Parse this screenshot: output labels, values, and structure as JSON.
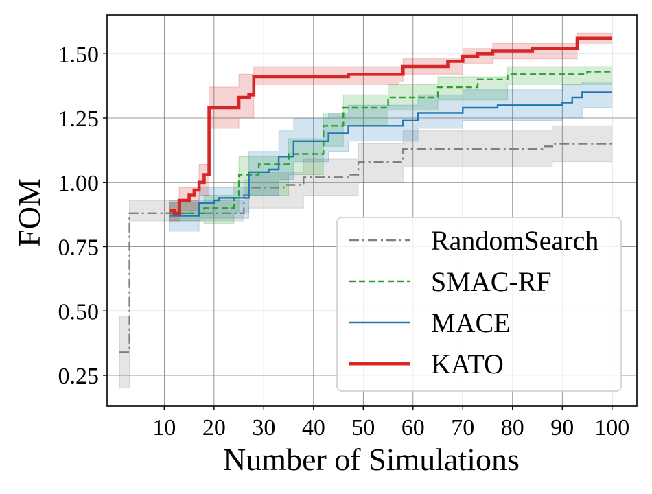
{
  "chart_data": {
    "type": "line",
    "title": "",
    "xlabel": "Number of Simulations",
    "ylabel": "FOM",
    "xlim": [
      -1.5,
      105
    ],
    "ylim": [
      0.13,
      1.65
    ],
    "xticks": [
      10,
      20,
      30,
      40,
      50,
      60,
      70,
      80,
      90,
      100
    ],
    "xtick_labels": [
      "10",
      "20",
      "30",
      "40",
      "50",
      "60",
      "70",
      "80",
      "90",
      "100"
    ],
    "yticks": [
      0.25,
      0.5,
      0.75,
      1.0,
      1.25,
      1.5
    ],
    "ytick_labels": [
      "0.25",
      "0.50",
      "0.75",
      "1.00",
      "1.25",
      "1.50"
    ],
    "grid": true,
    "legend_position": "lower-right",
    "series": [
      {
        "name": "RandomSearch",
        "color": "#7f7f7f",
        "style": "dashdot",
        "points": [
          [
            1,
            0.34
          ],
          [
            3,
            0.88
          ],
          [
            26,
            0.95
          ],
          [
            27,
            0.98
          ],
          [
            34,
            0.99
          ],
          [
            38,
            1.02
          ],
          [
            47,
            1.03
          ],
          [
            49,
            1.08
          ],
          [
            58,
            1.13
          ],
          [
            86,
            1.14
          ],
          [
            88,
            1.15
          ],
          [
            100,
            1.15
          ]
        ],
        "band": [
          [
            1,
            0.2,
            0.48
          ],
          [
            3,
            0.85,
            0.93
          ],
          [
            26,
            0.88,
            1.01
          ],
          [
            27,
            0.9,
            1.04
          ],
          [
            38,
            0.95,
            1.09
          ],
          [
            49,
            1.0,
            1.15
          ],
          [
            58,
            1.06,
            1.2
          ],
          [
            88,
            1.08,
            1.22
          ],
          [
            100,
            1.08,
            1.22
          ]
        ]
      },
      {
        "name": "SMAC-RF",
        "color": "#2ca02c",
        "style": "dashed",
        "points": [
          [
            11,
            0.88
          ],
          [
            14,
            0.88
          ],
          [
            18,
            0.9
          ],
          [
            22,
            0.9
          ],
          [
            24,
            0.94
          ],
          [
            25,
            1.03
          ],
          [
            29,
            1.07
          ],
          [
            35,
            1.11
          ],
          [
            40,
            1.11
          ],
          [
            42,
            1.22
          ],
          [
            46,
            1.29
          ],
          [
            54,
            1.29
          ],
          [
            55,
            1.33
          ],
          [
            62,
            1.33
          ],
          [
            65,
            1.37
          ],
          [
            71,
            1.37
          ],
          [
            73,
            1.4
          ],
          [
            79,
            1.42
          ],
          [
            90,
            1.42
          ],
          [
            95,
            1.43
          ],
          [
            100,
            1.43
          ]
        ],
        "band": [
          [
            11,
            0.85,
            0.92
          ],
          [
            18,
            0.84,
            0.95
          ],
          [
            24,
            0.88,
            1.0
          ],
          [
            25,
            0.95,
            1.1
          ],
          [
            35,
            1.03,
            1.17
          ],
          [
            42,
            1.14,
            1.27
          ],
          [
            46,
            1.22,
            1.34
          ],
          [
            55,
            1.28,
            1.38
          ],
          [
            65,
            1.32,
            1.41
          ],
          [
            79,
            1.38,
            1.45
          ],
          [
            100,
            1.39,
            1.46
          ]
        ]
      },
      {
        "name": "MACE",
        "color": "#1f77b4",
        "style": "solid",
        "points": [
          [
            11,
            0.87
          ],
          [
            16,
            0.87
          ],
          [
            17,
            0.92
          ],
          [
            20,
            0.93
          ],
          [
            21,
            0.94
          ],
          [
            26,
            0.94
          ],
          [
            27,
            1.04
          ],
          [
            31,
            1.05
          ],
          [
            33,
            1.1
          ],
          [
            36,
            1.16
          ],
          [
            42,
            1.16
          ],
          [
            43,
            1.19
          ],
          [
            47,
            1.22
          ],
          [
            57,
            1.22
          ],
          [
            58,
            1.24
          ],
          [
            61,
            1.27
          ],
          [
            70,
            1.29
          ],
          [
            77,
            1.3
          ],
          [
            88,
            1.3
          ],
          [
            90,
            1.31
          ],
          [
            92,
            1.33
          ],
          [
            94,
            1.35
          ],
          [
            100,
            1.35
          ]
        ],
        "band": [
          [
            11,
            0.81,
            0.93
          ],
          [
            17,
            0.86,
            0.98
          ],
          [
            27,
            0.95,
            1.12
          ],
          [
            33,
            1.01,
            1.2
          ],
          [
            36,
            1.08,
            1.25
          ],
          [
            43,
            1.12,
            1.27
          ],
          [
            47,
            1.16,
            1.3
          ],
          [
            61,
            1.21,
            1.34
          ],
          [
            70,
            1.24,
            1.36
          ],
          [
            90,
            1.25,
            1.38
          ],
          [
            94,
            1.29,
            1.39
          ],
          [
            100,
            1.3,
            1.4
          ]
        ]
      },
      {
        "name": "KATO",
        "color": "#d62728",
        "style": "solid",
        "points": [
          [
            11,
            0.89
          ],
          [
            12,
            0.88
          ],
          [
            13,
            0.93
          ],
          [
            15,
            0.95
          ],
          [
            16,
            0.97
          ],
          [
            17,
            1.0
          ],
          [
            18,
            1.03
          ],
          [
            19,
            1.29
          ],
          [
            24,
            1.29
          ],
          [
            25,
            1.33
          ],
          [
            27,
            1.34
          ],
          [
            28,
            1.41
          ],
          [
            45,
            1.41
          ],
          [
            47,
            1.42
          ],
          [
            57,
            1.42
          ],
          [
            58,
            1.45
          ],
          [
            65,
            1.45
          ],
          [
            67,
            1.47
          ],
          [
            70,
            1.49
          ],
          [
            73,
            1.5
          ],
          [
            76,
            1.51
          ],
          [
            82,
            1.51
          ],
          [
            84,
            1.52
          ],
          [
            86,
            1.52
          ],
          [
            92,
            1.52
          ],
          [
            93,
            1.56
          ],
          [
            100,
            1.56
          ]
        ],
        "band": [
          [
            11,
            0.85,
            0.92
          ],
          [
            13,
            0.89,
            0.98
          ],
          [
            17,
            0.95,
            1.07
          ],
          [
            19,
            1.21,
            1.37
          ],
          [
            25,
            1.25,
            1.42
          ],
          [
            28,
            1.38,
            1.45
          ],
          [
            57,
            1.39,
            1.45
          ],
          [
            58,
            1.42,
            1.48
          ],
          [
            70,
            1.46,
            1.52
          ],
          [
            76,
            1.48,
            1.54
          ],
          [
            93,
            1.54,
            1.58
          ],
          [
            100,
            1.54,
            1.58
          ]
        ]
      }
    ]
  }
}
